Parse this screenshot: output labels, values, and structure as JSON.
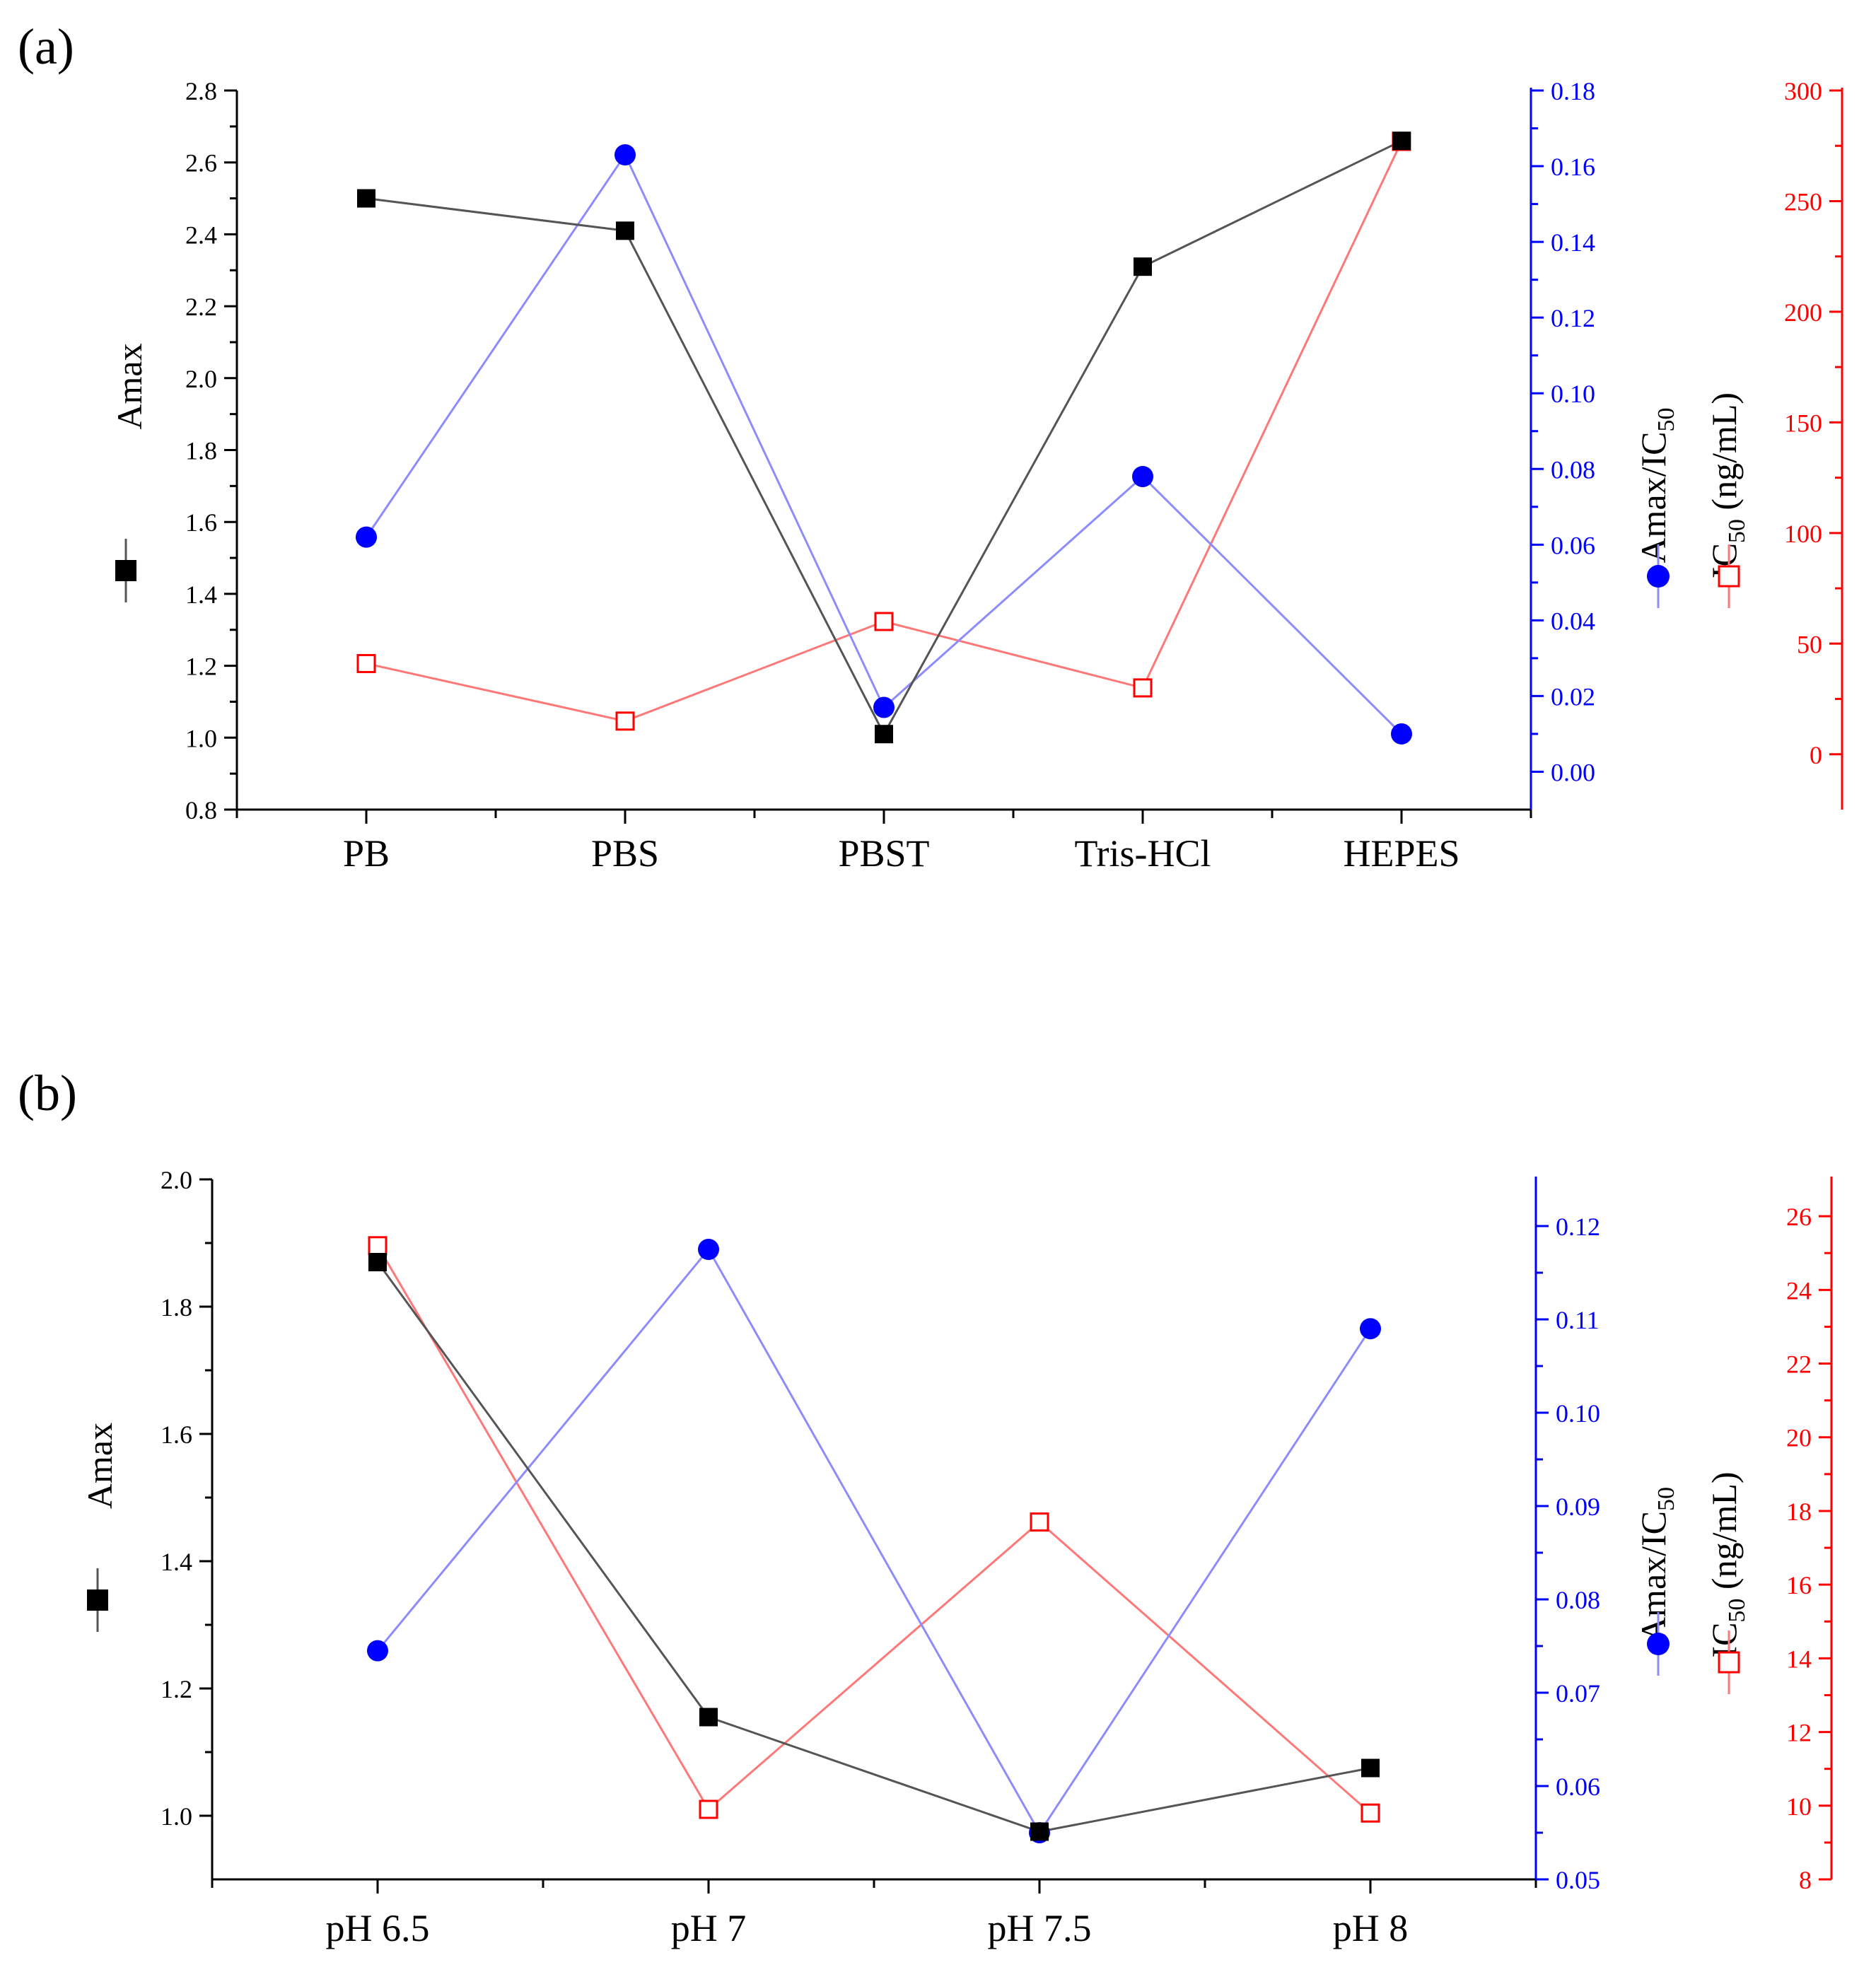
{
  "colors": {
    "amax": "#000000",
    "ratio": "#0000ff",
    "ic50": "#ff0000",
    "ratio_line": "#8c8cff",
    "ic50_line": "#ff7878",
    "axis": "#000000"
  },
  "chart_data": [
    {
      "type": "line",
      "panel_label": "(a)",
      "categories": [
        "PB",
        "PBS",
        "PBST",
        "Tris-HCl",
        "HEPES"
      ],
      "left_axis": {
        "ylabel": "Amax",
        "ylim": [
          0.8,
          2.8
        ],
        "ticks": [
          "0.8",
          "1.0",
          "1.2",
          "1.4",
          "1.6",
          "1.8",
          "2.0",
          "2.2",
          "2.4",
          "2.6",
          "2.8"
        ]
      },
      "right_axis_1": {
        "ylabel": "Amax/IC",
        "ylabel_sub": "50",
        "ylim": [
          -0.01,
          0.18
        ],
        "ticks": [
          "0.00",
          "0.02",
          "0.04",
          "0.06",
          "0.08",
          "0.10",
          "0.12",
          "0.14",
          "0.16",
          "0.18"
        ]
      },
      "right_axis_2": {
        "ylabel": "IC",
        "ylabel_sub": "50",
        "ylabel_unit": " (ng/mL)",
        "ylim": [
          -25,
          300
        ],
        "ticks": [
          "0",
          "50",
          "100",
          "150",
          "200",
          "250",
          "300"
        ]
      },
      "series": [
        {
          "name": "Amax",
          "axis": "left",
          "marker": "filled-square",
          "values": [
            2.5,
            2.41,
            1.01,
            2.31,
            2.66
          ]
        },
        {
          "name": "Amax/IC50",
          "axis": "right1",
          "marker": "filled-circle",
          "values": [
            0.062,
            0.163,
            0.017,
            0.078,
            0.01
          ]
        },
        {
          "name": "IC50 (ng/mL)",
          "axis": "right2",
          "marker": "open-square",
          "values": [
            41,
            15,
            60,
            30,
            277
          ]
        }
      ]
    },
    {
      "type": "line",
      "panel_label": "(b)",
      "categories": [
        "pH 6.5",
        "pH 7",
        "pH 7.5",
        "pH 8"
      ],
      "left_axis": {
        "ylabel": "Amax",
        "ylim": [
          0.9,
          2.0
        ],
        "ticks": [
          "1.0",
          "1.2",
          "1.4",
          "1.6",
          "1.8",
          "2.0"
        ]
      },
      "right_axis_1": {
        "ylabel": "Amax/IC",
        "ylabel_sub": "50",
        "ylim": [
          0.05,
          0.125
        ],
        "ticks": [
          "0.05",
          "0.06",
          "0.07",
          "0.08",
          "0.09",
          "0.10",
          "0.11",
          "0.12"
        ]
      },
      "right_axis_2": {
        "ylabel": "IC",
        "ylabel_sub": "50",
        "ylabel_unit": " (ng/mL)",
        "ylim": [
          8,
          27
        ],
        "ticks": [
          "8",
          "10",
          "12",
          "14",
          "16",
          "18",
          "20",
          "22",
          "24",
          "26"
        ]
      },
      "series": [
        {
          "name": "Amax",
          "axis": "left",
          "marker": "filled-square",
          "values": [
            1.87,
            1.155,
            0.975,
            1.075
          ]
        },
        {
          "name": "Amax/IC50",
          "axis": "right1",
          "marker": "filled-circle",
          "values": [
            0.0745,
            0.1175,
            0.055,
            0.109
          ]
        },
        {
          "name": "IC50 (ng/mL)",
          "axis": "right2",
          "marker": "open-square",
          "values": [
            25.2,
            9.9,
            17.7,
            9.8
          ]
        }
      ]
    }
  ]
}
